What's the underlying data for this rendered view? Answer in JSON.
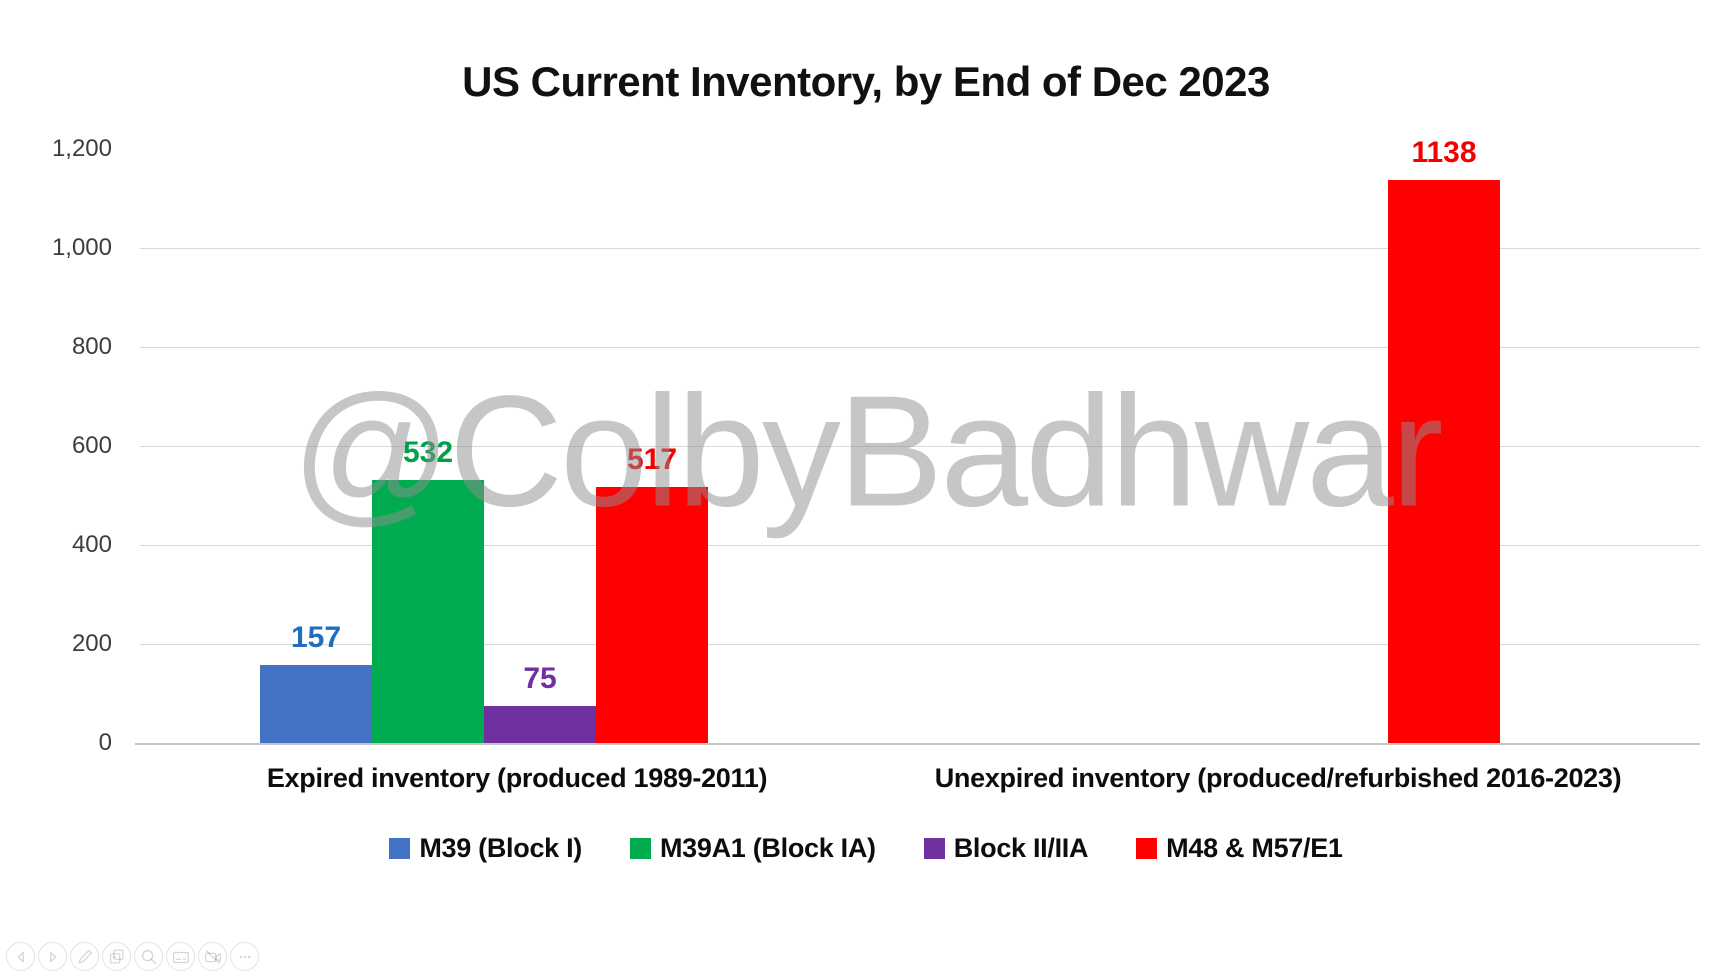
{
  "page": {
    "watermark": "@ColbyBadhwar"
  },
  "chart_data": {
    "type": "bar",
    "title": "US Current Inventory, by End of Dec 2023",
    "categories": [
      "Expired inventory (produced 1989-2011)",
      "Unexpired inventory (produced/refurbished 2016-2023)"
    ],
    "series": [
      {
        "name": "M39 (Block I)",
        "color": "#4472C4",
        "label_color": "#1F6FBE",
        "values": [
          157,
          null
        ]
      },
      {
        "name": "M39A1 (Block IA)",
        "color": "#00AC4F",
        "label_color": "#00A04A",
        "values": [
          532,
          null
        ]
      },
      {
        "name": "Block II/IIA",
        "color": "#7030A0",
        "label_color": "#7030A0",
        "values": [
          75,
          null
        ]
      },
      {
        "name": "M48 & M57/E1",
        "color": "#FE0000",
        "label_color": "#F40000",
        "values": [
          517,
          1138
        ]
      }
    ],
    "ylim": [
      0,
      1200
    ],
    "y_ticks": [
      {
        "value": 0,
        "label": "0"
      },
      {
        "value": 200,
        "label": "200"
      },
      {
        "value": 400,
        "label": "400"
      },
      {
        "value": 600,
        "label": "600"
      },
      {
        "value": 800,
        "label": "800"
      },
      {
        "value": 1000,
        "label": "1,000"
      },
      {
        "value": 1200,
        "label": "1,200"
      }
    ],
    "grid": {
      "horizontal": true,
      "line_values": [
        200,
        400,
        600,
        800,
        1000
      ]
    },
    "legend_position": "bottom",
    "data_labels": true
  },
  "toolbar": {
    "icons": [
      {
        "name": "previous-arrow"
      },
      {
        "name": "next-arrow"
      },
      {
        "name": "pencil"
      },
      {
        "name": "copy"
      },
      {
        "name": "zoom"
      },
      {
        "name": "card"
      },
      {
        "name": "video-off"
      },
      {
        "name": "more-options"
      }
    ]
  }
}
